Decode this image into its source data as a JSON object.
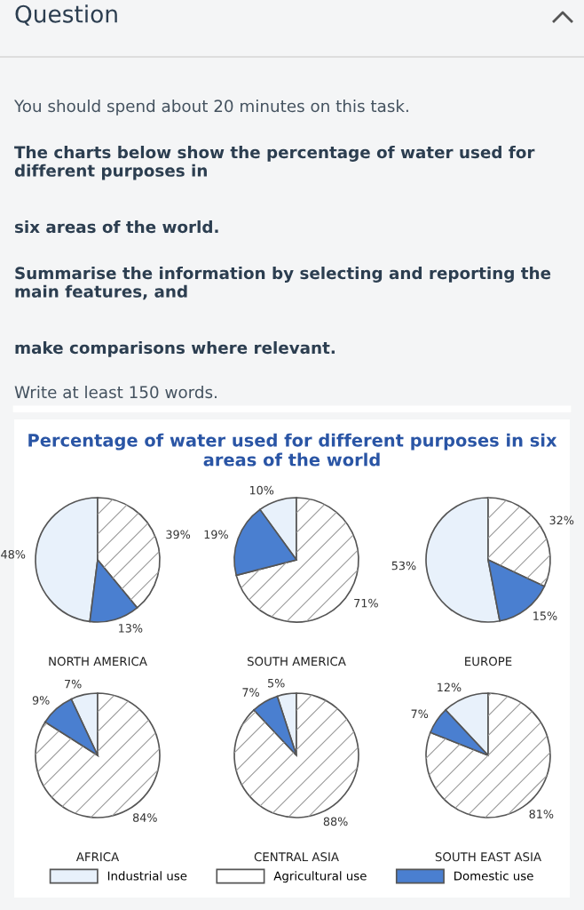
{
  "chart_data": [
    {
      "type": "other",
      "title": "Question",
      "annotations": [
        "You should spend about 20 minutes on this task.",
        "The charts below show the percentage of water used for different purposes in",
        "six areas of the world.",
        "Summarise the information by selecting and reporting the main features, and",
        "make comparisons where relevant.",
        "Write at least 150 words."
      ]
    },
    {
      "type": "pie",
      "title": "Percentage of water used for different purposes in six areas of the world",
      "xlabel": "NORTH AMERICA",
      "categories": [
        "Industrial use",
        "Agricultural use",
        "Domestic use"
      ],
      "values": [
        48,
        39,
        13
      ],
      "colors": [
        "#e8f1fb",
        "#ffffff",
        "#4a7fd0"
      ],
      "value_labels": [
        "48%",
        "39%",
        "13%"
      ],
      "legend": "bottom"
    },
    {
      "type": "pie",
      "xlabel": "SOUTH AMERICA",
      "values": [
        10,
        71,
        19
      ],
      "colors": [
        "#e8f1fb",
        "#ffffff",
        "#4a7fd0"
      ],
      "value_labels": [
        "10%",
        "71%",
        "19%"
      ]
    },
    {
      "type": "pie",
      "xlabel": "EUROPE",
      "values": [
        53,
        32,
        15
      ],
      "colors": [
        "#e8f1fb",
        "#ffffff",
        "#4a7fd0"
      ],
      "value_labels": [
        "53%",
        "32%",
        "15%"
      ]
    },
    {
      "type": "pie",
      "xlabel": "AFRICA",
      "values": [
        7,
        84,
        9
      ],
      "colors": [
        "#e8f1fb",
        "#ffffff",
        "#4a7fd0"
      ],
      "value_labels": [
        "7%",
        "84%",
        "9%"
      ]
    },
    {
      "type": "pie",
      "xlabel": "CENTRAL ASIA",
      "values": [
        5,
        88,
        7
      ],
      "colors": [
        "#e8f1fb",
        "#ffffff",
        "#4a7fd0"
      ],
      "value_labels": [
        "5%",
        "88%",
        "7%"
      ]
    },
    {
      "type": "pie",
      "xlabel": "SOUTH EAST ASIA",
      "values": [
        12,
        81,
        7
      ],
      "colors": [
        "#e8f1fb",
        "#ffffff",
        "#4a7fd0"
      ],
      "value_labels": [
        "12%",
        "81%",
        "7%"
      ]
    }
  ]
}
